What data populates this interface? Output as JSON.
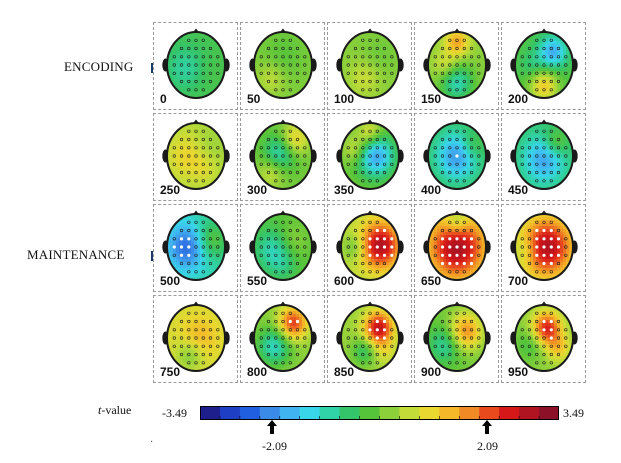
{
  "rows": [
    {
      "label": "ENCODING"
    },
    {
      "label": "MAINTENANCE"
    }
  ],
  "times": [
    "0",
    "50",
    "100",
    "150",
    "200",
    "250",
    "300",
    "350",
    "400",
    "450",
    "500",
    "550",
    "600",
    "650",
    "700",
    "750",
    "800",
    "850",
    "900",
    "950"
  ],
  "maps": [
    {
      "base": -0.4,
      "blobs": [
        [
          -0.35,
          0.1,
          0.45,
          -0.6
        ],
        [
          0.3,
          0.2,
          0.4,
          0.1
        ]
      ]
    },
    {
      "base": 0.1,
      "blobs": [
        [
          0.0,
          -0.3,
          0.5,
          -0.3
        ],
        [
          -0.4,
          0.4,
          0.35,
          0.5
        ]
      ]
    },
    {
      "base": 0.15,
      "blobs": [
        [
          -0.2,
          0.4,
          0.4,
          0.5
        ],
        [
          0.3,
          -0.3,
          0.4,
          -0.2
        ]
      ]
    },
    {
      "base": 0.2,
      "blobs": [
        [
          0.0,
          -0.7,
          0.3,
          1.4
        ],
        [
          0.0,
          0.55,
          0.4,
          -1.3
        ],
        [
          -0.4,
          0.0,
          0.3,
          0.6
        ]
      ]
    },
    {
      "base": -0.3,
      "blobs": [
        [
          0.3,
          -0.4,
          0.35,
          -1.6
        ],
        [
          0.0,
          0.65,
          0.35,
          1.5
        ],
        [
          -0.4,
          0.0,
          0.3,
          -0.4
        ]
      ]
    },
    {
      "base": 0.4,
      "blobs": [
        [
          -0.3,
          0.0,
          0.5,
          0.7
        ],
        [
          0.35,
          -0.3,
          0.35,
          -0.2
        ],
        [
          0.3,
          0.4,
          0.3,
          0.3
        ]
      ]
    },
    {
      "base": 0.0,
      "blobs": [
        [
          -0.1,
          -0.1,
          0.4,
          -1.2
        ],
        [
          0.4,
          -0.5,
          0.35,
          1.2
        ],
        [
          -0.4,
          0.5,
          0.35,
          0.7
        ]
      ]
    },
    {
      "base": 0.0,
      "blobs": [
        [
          0.2,
          0.0,
          0.45,
          -2.0
        ],
        [
          -0.5,
          -0.2,
          0.3,
          0.8
        ],
        [
          0.0,
          -0.7,
          0.3,
          1.0
        ]
      ]
    },
    {
      "base": -0.5,
      "blobs": [
        [
          0.0,
          0.0,
          0.5,
          -1.6
        ],
        [
          0.5,
          -0.3,
          0.3,
          0.6
        ]
      ]
    },
    {
      "base": -0.6,
      "blobs": [
        [
          0.0,
          0.1,
          0.5,
          -1.4
        ],
        [
          0.4,
          -0.4,
          0.3,
          0.8
        ]
      ]
    },
    {
      "base": -1.0,
      "blobs": [
        [
          -0.3,
          0.0,
          0.5,
          -1.6
        ],
        [
          0.5,
          -0.2,
          0.4,
          1.0
        ]
      ]
    },
    {
      "base": -0.2,
      "blobs": [
        [
          -0.3,
          0.1,
          0.45,
          -1.0
        ],
        [
          0.3,
          -0.2,
          0.4,
          0.5
        ],
        [
          0.0,
          0.6,
          0.3,
          -0.3
        ]
      ]
    },
    {
      "base": 0.5,
      "blobs": [
        [
          0.35,
          -0.05,
          0.5,
          2.6
        ],
        [
          -0.5,
          0.0,
          0.3,
          -0.8
        ]
      ]
    },
    {
      "base": 0.6,
      "blobs": [
        [
          0.0,
          0.0,
          0.65,
          2.6
        ],
        [
          0.0,
          -0.75,
          0.3,
          -1.0
        ]
      ]
    },
    {
      "base": 0.5,
      "blobs": [
        [
          0.1,
          0.0,
          0.6,
          2.6
        ],
        [
          -0.6,
          0.1,
          0.3,
          -0.6
        ]
      ]
    },
    {
      "base": 0.8,
      "blobs": [
        [
          0.1,
          0.0,
          0.45,
          0.7
        ],
        [
          -0.2,
          0.5,
          0.35,
          -0.8
        ]
      ]
    },
    {
      "base": 0.2,
      "blobs": [
        [
          0.35,
          -0.45,
          0.35,
          2.2
        ],
        [
          -0.3,
          0.25,
          0.4,
          -1.4
        ]
      ]
    },
    {
      "base": 0.3,
      "blobs": [
        [
          0.3,
          -0.3,
          0.35,
          2.6
        ],
        [
          -0.2,
          0.4,
          0.3,
          -0.9
        ],
        [
          0.5,
          0.4,
          0.3,
          0.5
        ]
      ]
    },
    {
      "base": 0.0,
      "blobs": [
        [
          0.3,
          -0.2,
          0.4,
          1.8
        ],
        [
          -0.4,
          0.2,
          0.4,
          -1.0
        ]
      ]
    },
    {
      "base": 0.2,
      "blobs": [
        [
          0.1,
          -0.3,
          0.35,
          2.4
        ],
        [
          0.5,
          0.3,
          0.3,
          1.0
        ],
        [
          -0.5,
          0.2,
          0.35,
          -0.6
        ]
      ]
    }
  ],
  "colorbar": {
    "axis_label_prefix": "t",
    "axis_label_suffix": "-value",
    "min": -3.49,
    "max": 3.49,
    "min_label": "-3.49",
    "max_label": "3.49",
    "markers": [
      {
        "value": -2.09,
        "label": "-2.09"
      },
      {
        "value": 2.09,
        "label": "2.09"
      }
    ],
    "colors": [
      "#1e1e8c",
      "#1e3ec4",
      "#2060e0",
      "#3a8ae8",
      "#40b4f0",
      "#38d6e8",
      "#30d2a8",
      "#34c46a",
      "#56c43a",
      "#8cd03a",
      "#c4dc38",
      "#e8d830",
      "#f4b828",
      "#f08a24",
      "#e84a1e",
      "#d61818",
      "#b01420",
      "#8c1028"
    ],
    "ticks": 18
  },
  "colors": {
    "head_outline": "#222222",
    "cell_border": "#9a9a9a",
    "electrode_dot": "#1a1a1a"
  }
}
